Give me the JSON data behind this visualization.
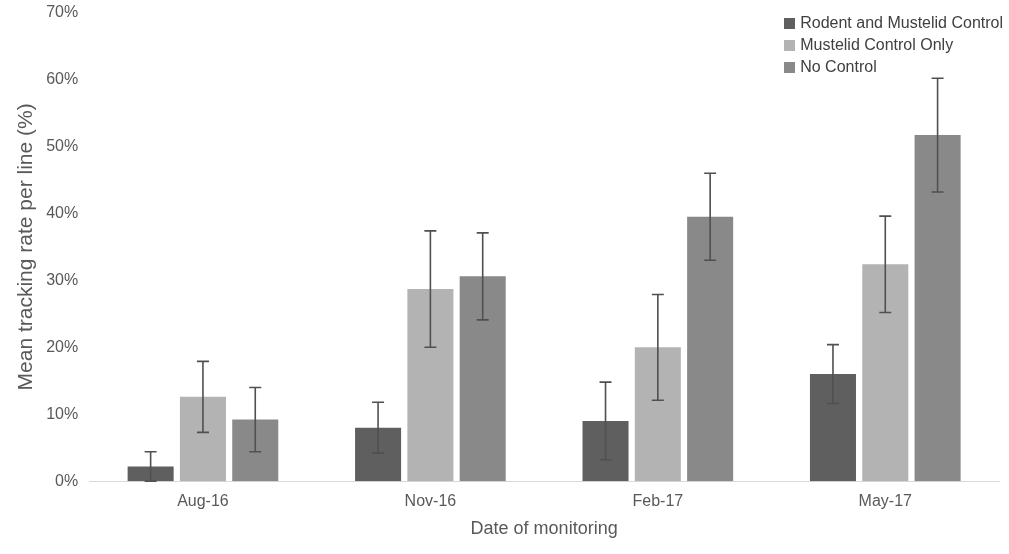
{
  "chart_data": {
    "type": "bar",
    "xlabel": "Date of monitoring",
    "ylabel": "Mean tracking rate per line (%)",
    "categories": [
      "Aug-16",
      "Nov-16",
      "Feb-17",
      "May-17"
    ],
    "series": [
      {
        "name": "Rodent and Mustelid Control",
        "color": "#5f5f5f",
        "values": [
          2.2,
          8.0,
          9.0,
          16.0
        ],
        "errors": [
          2.2,
          3.8,
          5.8,
          4.4
        ]
      },
      {
        "name": "Mustelid Control Only",
        "color": "#b3b3b3",
        "values": [
          12.6,
          28.7,
          20.0,
          32.4
        ],
        "errors": [
          5.3,
          8.7,
          7.9,
          7.2
        ]
      },
      {
        "name": "No Control",
        "color": "#898989",
        "values": [
          9.2,
          30.6,
          39.5,
          51.7
        ],
        "errors": [
          4.8,
          6.5,
          6.5,
          8.5
        ]
      }
    ],
    "ylim": [
      0,
      70
    ],
    "yticks": [
      {
        "value": 0,
        "label": "0%"
      },
      {
        "value": 10,
        "label": "10%"
      },
      {
        "value": 20,
        "label": "20%"
      },
      {
        "value": 30,
        "label": "30%"
      },
      {
        "value": 40,
        "label": "40%"
      },
      {
        "value": 50,
        "label": "50%"
      },
      {
        "value": 60,
        "label": "60%"
      },
      {
        "value": 70,
        "label": "70%"
      }
    ],
    "grid": false,
    "legend": "top right"
  }
}
